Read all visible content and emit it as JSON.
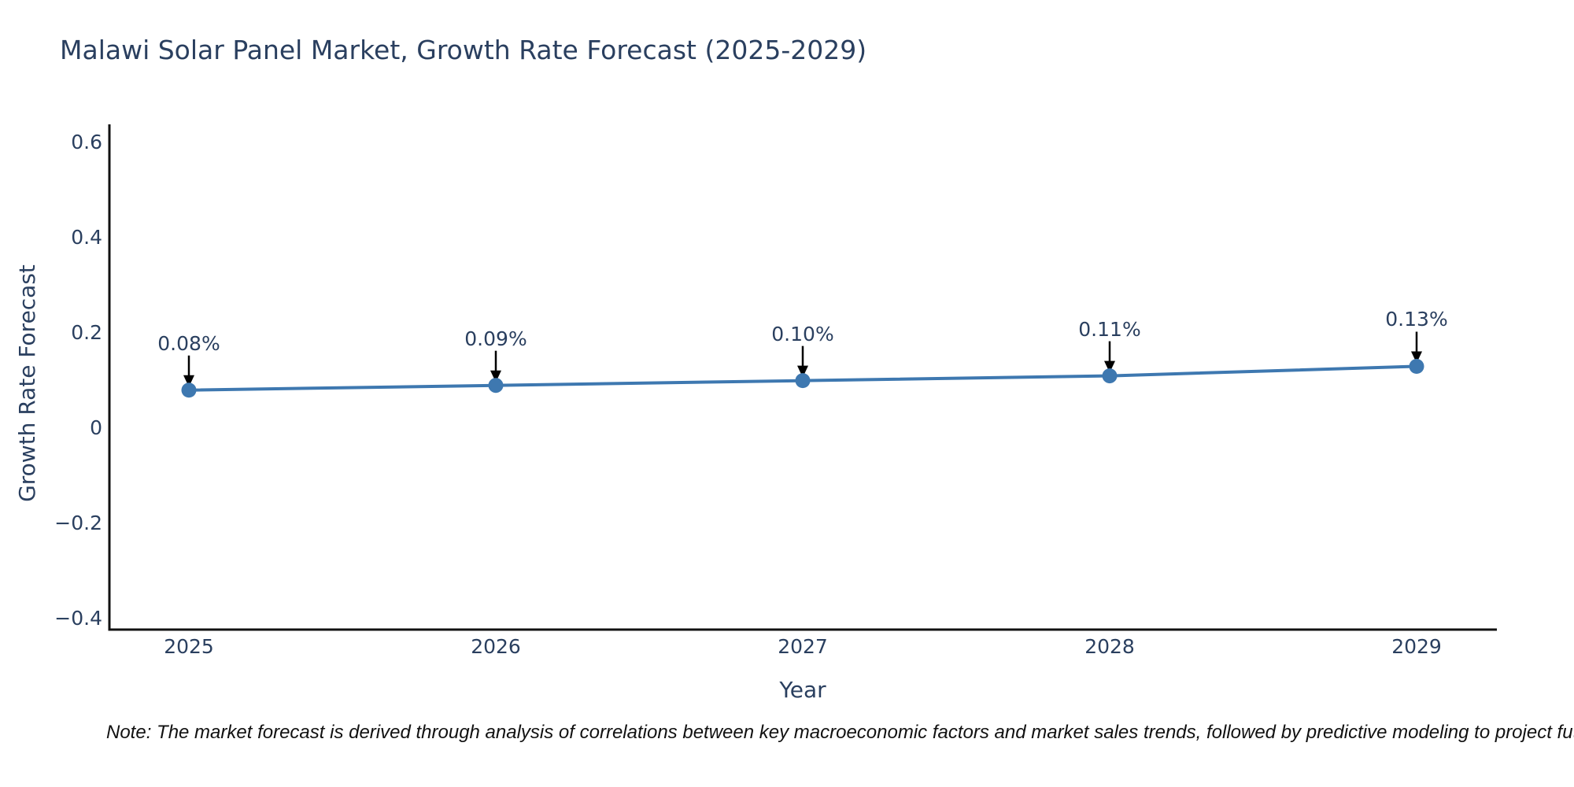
{
  "title": "Malawi Solar Panel Market, Growth Rate Forecast (2025-2029)",
  "note": "Note: The market forecast is derived through analysis of correlations between key macroeconomic factors and market sales trends, followed by predictive modeling to project future sales.",
  "colors": {
    "accent_blue": "#3E78B0",
    "text": "#2a3f5f",
    "axis_line": "#111111",
    "arrow": "#000000",
    "note_text": "#111111",
    "background": "#ffffff"
  },
  "chart_data": {
    "type": "line",
    "title": "Malawi Solar Panel Market, Growth Rate Forecast (2025-2029)",
    "xlabel": "Year",
    "ylabel": "Growth Rate Forecast",
    "categories": [
      "2025",
      "2026",
      "2027",
      "2028",
      "2029"
    ],
    "values": [
      0.08,
      0.09,
      0.1,
      0.11,
      0.13
    ],
    "point_labels": [
      "0.08%",
      "0.09%",
      "0.10%",
      "0.11%",
      "0.13%"
    ],
    "ytick_values": [
      0.6,
      0.4,
      0.2,
      0,
      -0.2,
      -0.4
    ],
    "ytick_labels": [
      "0.6",
      "0.4",
      "0.2",
      "0",
      "−0.2",
      "−0.4"
    ],
    "ylim": [
      -0.423,
      0.64
    ],
    "grid": false,
    "legend": false,
    "marker": "circle",
    "annotation_arrows": true
  }
}
